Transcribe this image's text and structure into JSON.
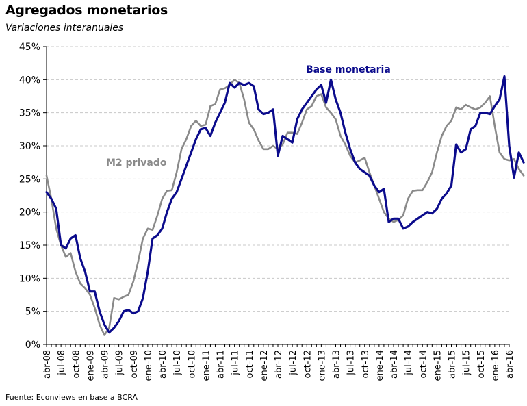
{
  "chart_data": {
    "type": "line",
    "title": "Agregados monetarios",
    "subtitle": "Variaciones interanuales",
    "source": "Fuente: Econviews en base a BCRA",
    "ylim": [
      0,
      45
    ],
    "y_ticks": [
      "0%",
      "5%",
      "10%",
      "15%",
      "20%",
      "25%",
      "30%",
      "35%",
      "40%",
      "45%"
    ],
    "x_start": "abr-08",
    "x_ticks": [
      "abr-08",
      "jul-08",
      "oct-08",
      "ene-09",
      "abr-09",
      "jul-09",
      "oct-09",
      "ene-10",
      "abr-10",
      "jul-10",
      "oct-10",
      "ene-11",
      "abr-11",
      "jul-11",
      "oct-11",
      "ene-12",
      "abr-12",
      "jul-12",
      "oct-12",
      "ene-13",
      "abr-13",
      "jul-13",
      "oct-13",
      "ene-14",
      "abr-14",
      "jul-14",
      "oct-14",
      "ene-15",
      "abr-15",
      "jul-15",
      "oct-15",
      "ene-16",
      "abr-16"
    ],
    "grid": "horizontal-dashed",
    "series": [
      {
        "name": "Base monetaria",
        "color": "#0b0b8c",
        "points": [
          [
            0,
            23
          ],
          [
            0.5,
            22
          ],
          [
            1,
            20.5
          ],
          [
            1.5,
            15
          ],
          [
            2,
            14.5
          ],
          [
            2.5,
            16
          ],
          [
            3,
            16.5
          ],
          [
            3.5,
            13
          ],
          [
            4,
            11
          ],
          [
            4.5,
            8
          ],
          [
            5,
            8
          ],
          [
            5.5,
            5
          ],
          [
            6,
            3
          ],
          [
            6.5,
            1.8
          ],
          [
            7,
            2.5
          ],
          [
            7.5,
            3.5
          ],
          [
            8,
            5
          ],
          [
            8.5,
            5.2
          ],
          [
            9,
            4.7
          ],
          [
            9.5,
            5
          ],
          [
            10,
            7
          ],
          [
            10.5,
            11
          ],
          [
            11,
            16
          ],
          [
            11.5,
            16.5
          ],
          [
            12,
            17.5
          ],
          [
            12.5,
            20
          ],
          [
            13,
            22
          ],
          [
            13.5,
            23
          ],
          [
            14,
            25
          ],
          [
            14.5,
            27
          ],
          [
            15,
            29
          ],
          [
            15.5,
            31
          ],
          [
            16,
            32.5
          ],
          [
            16.5,
            32.7
          ],
          [
            17,
            31.5
          ],
          [
            17.5,
            33.5
          ],
          [
            18,
            35
          ],
          [
            18.5,
            36.5
          ],
          [
            19,
            39.5
          ],
          [
            19.5,
            38.8
          ],
          [
            20,
            39.5
          ],
          [
            20.5,
            39.2
          ],
          [
            21,
            39.5
          ],
          [
            21.5,
            39
          ],
          [
            22,
            35.5
          ],
          [
            22.5,
            34.8
          ],
          [
            23,
            35
          ],
          [
            23.5,
            35.5
          ],
          [
            24,
            28.5
          ],
          [
            24.5,
            31.5
          ],
          [
            25,
            31
          ],
          [
            25.5,
            30.5
          ],
          [
            26,
            34
          ],
          [
            26.5,
            35.5
          ],
          [
            27,
            36.5
          ],
          [
            27.5,
            37.5
          ],
          [
            28,
            38.5
          ],
          [
            28.5,
            39.2
          ],
          [
            29,
            36.5
          ],
          [
            29.5,
            40
          ],
          [
            30,
            37
          ],
          [
            30.5,
            35
          ],
          [
            31,
            32
          ],
          [
            31.5,
            29.5
          ],
          [
            32,
            27.5
          ],
          [
            32.5,
            26.5
          ],
          [
            33,
            26
          ],
          [
            33.5,
            25.5
          ],
          [
            34,
            24
          ],
          [
            34.5,
            23
          ],
          [
            35,
            23.5
          ],
          [
            35.5,
            18.5
          ],
          [
            36,
            19
          ],
          [
            36.5,
            19
          ],
          [
            37,
            17.5
          ],
          [
            37.5,
            17.8
          ],
          [
            38,
            18.5
          ],
          [
            38.5,
            19
          ],
          [
            39,
            19.5
          ],
          [
            39.5,
            20
          ],
          [
            40,
            19.8
          ],
          [
            40.5,
            20.5
          ],
          [
            41,
            22
          ],
          [
            41.5,
            22.8
          ],
          [
            42,
            24
          ],
          [
            42.5,
            30.2
          ],
          [
            43,
            29
          ],
          [
            43.5,
            29.5
          ],
          [
            44,
            32.5
          ],
          [
            44.5,
            33
          ],
          [
            45,
            35
          ],
          [
            45.5,
            35
          ],
          [
            46,
            34.8
          ],
          [
            46.5,
            36
          ],
          [
            47,
            37
          ],
          [
            47.5,
            40.5
          ],
          [
            48,
            30
          ],
          [
            48.5,
            25.2
          ],
          [
            49,
            29
          ],
          [
            49.5,
            27.5
          ]
        ]
      },
      {
        "name": "M2 privado",
        "color": "#8a8a8a",
        "points": [
          [
            0,
            25.5
          ],
          [
            0.5,
            22
          ],
          [
            1,
            17.5
          ],
          [
            1.5,
            15
          ],
          [
            2,
            13.2
          ],
          [
            2.5,
            13.8
          ],
          [
            3,
            11
          ],
          [
            3.5,
            9.2
          ],
          [
            4,
            8.5
          ],
          [
            4.5,
            7.5
          ],
          [
            5,
            5.5
          ],
          [
            5.5,
            3
          ],
          [
            6,
            1.4
          ],
          [
            6.5,
            2.5
          ],
          [
            7,
            7
          ],
          [
            7.5,
            6.8
          ],
          [
            8,
            7.2
          ],
          [
            8.5,
            7.5
          ],
          [
            9,
            9.5
          ],
          [
            9.5,
            12.5
          ],
          [
            10,
            16
          ],
          [
            10.5,
            17.5
          ],
          [
            11,
            17.3
          ],
          [
            11.5,
            19.5
          ],
          [
            12,
            22
          ],
          [
            12.5,
            23.2
          ],
          [
            13,
            23.3
          ],
          [
            13.5,
            26
          ],
          [
            14,
            29.5
          ],
          [
            14.5,
            31
          ],
          [
            15,
            33
          ],
          [
            15.5,
            33.8
          ],
          [
            16,
            33
          ],
          [
            16.5,
            33.2
          ],
          [
            17,
            36
          ],
          [
            17.5,
            36.3
          ],
          [
            18,
            38.5
          ],
          [
            18.5,
            38.7
          ],
          [
            19,
            39.2
          ],
          [
            19.5,
            40
          ],
          [
            20,
            39.5
          ],
          [
            20.5,
            37
          ],
          [
            21,
            33.5
          ],
          [
            21.5,
            32.5
          ],
          [
            22,
            30.8
          ],
          [
            22.5,
            29.5
          ],
          [
            23,
            29.5
          ],
          [
            23.5,
            30
          ],
          [
            24,
            29.5
          ],
          [
            24.5,
            30.2
          ],
          [
            25,
            32
          ],
          [
            25.5,
            32
          ],
          [
            26,
            31.8
          ],
          [
            26.5,
            33.5
          ],
          [
            27,
            35.5
          ],
          [
            27.5,
            36
          ],
          [
            28,
            37.5
          ],
          [
            28.5,
            37.8
          ],
          [
            29,
            35.8
          ],
          [
            29.5,
            35
          ],
          [
            30,
            34
          ],
          [
            30.5,
            31.5
          ],
          [
            31,
            30.2
          ],
          [
            31.5,
            28.5
          ],
          [
            32,
            27.5
          ],
          [
            32.5,
            27.8
          ],
          [
            33,
            28.2
          ],
          [
            33.5,
            26
          ],
          [
            34,
            24
          ],
          [
            34.5,
            22
          ],
          [
            35,
            20
          ],
          [
            35.5,
            19
          ],
          [
            36,
            18.5
          ],
          [
            36.5,
            18.8
          ],
          [
            37,
            19.5
          ],
          [
            37.5,
            22
          ],
          [
            38,
            23.2
          ],
          [
            38.5,
            23.3
          ],
          [
            39,
            23.3
          ],
          [
            39.5,
            24.5
          ],
          [
            40,
            26
          ],
          [
            40.5,
            29
          ],
          [
            41,
            31.5
          ],
          [
            41.5,
            33
          ],
          [
            42,
            33.8
          ],
          [
            42.5,
            35.8
          ],
          [
            43,
            35.5
          ],
          [
            43.5,
            36.2
          ],
          [
            44,
            35.8
          ],
          [
            44.5,
            35.5
          ],
          [
            45,
            35.8
          ],
          [
            45.5,
            36.5
          ],
          [
            46,
            37.5
          ],
          [
            46.5,
            33
          ],
          [
            47,
            29
          ],
          [
            47.5,
            28
          ],
          [
            48,
            27.8
          ],
          [
            48.5,
            28
          ],
          [
            49,
            26.5
          ],
          [
            49.5,
            25.5
          ]
        ]
      }
    ]
  }
}
